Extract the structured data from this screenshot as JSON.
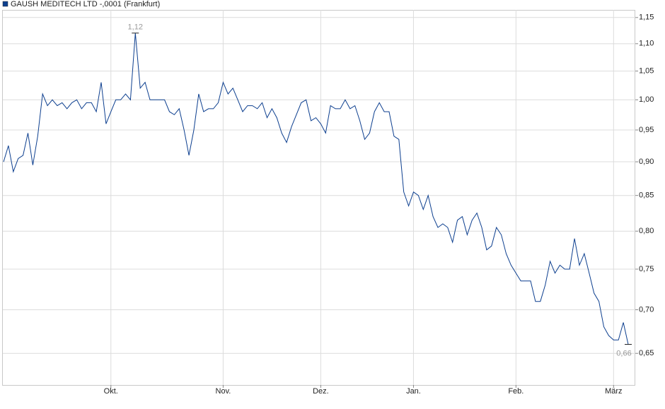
{
  "chart_data": {
    "type": "line",
    "log_scale": true,
    "grid": true,
    "legend_position": "top-left",
    "ylim": [
      0.616,
      1.165
    ],
    "yticks": [
      {
        "value": 0.65,
        "label": "0,65"
      },
      {
        "value": 0.7,
        "label": "0,70"
      },
      {
        "value": 0.75,
        "label": "0,75"
      },
      {
        "value": 0.8,
        "label": "0,80"
      },
      {
        "value": 0.85,
        "label": "0,85"
      },
      {
        "value": 0.9,
        "label": "0,90"
      },
      {
        "value": 0.95,
        "label": "0,95"
      },
      {
        "value": 1.0,
        "label": "1,00"
      },
      {
        "value": 1.05,
        "label": "1,05"
      },
      {
        "value": 1.1,
        "label": "1,10"
      },
      {
        "value": 1.15,
        "label": "1,15"
      }
    ],
    "categories": [
      null,
      null,
      null,
      null,
      null,
      null,
      null,
      null,
      null,
      null,
      null,
      null,
      null,
      null,
      null,
      null,
      null,
      null,
      null,
      null,
      null,
      null,
      "Okt.",
      null,
      null,
      null,
      null,
      null,
      null,
      null,
      null,
      null,
      null,
      null,
      null,
      null,
      null,
      null,
      null,
      null,
      null,
      null,
      null,
      null,
      null,
      "Nov.",
      null,
      null,
      null,
      null,
      null,
      null,
      null,
      null,
      null,
      null,
      null,
      null,
      null,
      null,
      null,
      null,
      null,
      null,
      null,
      "Dez.",
      null,
      null,
      null,
      null,
      null,
      null,
      null,
      null,
      null,
      null,
      null,
      null,
      null,
      null,
      null,
      null,
      null,
      null,
      "Jan.",
      null,
      null,
      null,
      null,
      null,
      null,
      null,
      null,
      null,
      null,
      null,
      null,
      null,
      null,
      null,
      null,
      null,
      null,
      null,
      null,
      "Feb.",
      null,
      null,
      null,
      null,
      null,
      null,
      null,
      null,
      null,
      null,
      null,
      null,
      null,
      null,
      null,
      null,
      null,
      null,
      null,
      "März",
      null,
      null,
      null
    ],
    "series": [
      {
        "name": "GAUSH MEDITECH LTD -,0001 (Frankfurt)",
        "color": "#0d3f8f",
        "values": [
          0.9,
          0.925,
          0.885,
          0.905,
          0.91,
          0.945,
          0.895,
          0.94,
          1.01,
          0.99,
          1.0,
          0.99,
          0.995,
          0.985,
          0.995,
          1.0,
          0.985,
          0.995,
          0.995,
          0.98,
          1.03,
          0.96,
          0.98,
          1.0,
          1.0,
          1.01,
          1.0,
          1.12,
          1.02,
          1.03,
          1.0,
          1.0,
          1.0,
          1.0,
          0.98,
          0.975,
          0.985,
          0.95,
          0.91,
          0.95,
          1.01,
          0.98,
          0.985,
          0.985,
          0.995,
          1.03,
          1.01,
          1.02,
          1.0,
          0.98,
          0.99,
          0.99,
          0.985,
          0.995,
          0.97,
          0.985,
          0.97,
          0.945,
          0.93,
          0.955,
          0.975,
          0.995,
          1.0,
          0.965,
          0.97,
          0.96,
          0.945,
          0.99,
          0.985,
          0.985,
          1.0,
          0.985,
          0.99,
          0.965,
          0.935,
          0.945,
          0.98,
          0.995,
          0.98,
          0.98,
          0.94,
          0.935,
          0.855,
          0.835,
          0.855,
          0.85,
          0.83,
          0.85,
          0.82,
          0.805,
          0.81,
          0.805,
          0.785,
          0.815,
          0.82,
          0.795,
          0.815,
          0.825,
          0.805,
          0.775,
          0.78,
          0.805,
          0.795,
          0.77,
          0.755,
          0.745,
          0.735,
          0.735,
          0.735,
          0.71,
          0.71,
          0.73,
          0.76,
          0.745,
          0.755,
          0.75,
          0.75,
          0.79,
          0.755,
          0.77,
          0.745,
          0.72,
          0.71,
          0.68,
          0.67,
          0.665,
          0.665,
          0.685,
          0.66
        ],
        "value_labels": [
          null,
          null,
          null,
          null,
          null,
          null,
          null,
          null,
          null,
          null,
          null,
          null,
          null,
          null,
          null,
          null,
          null,
          null,
          null,
          null,
          null,
          null,
          null,
          null,
          null,
          null,
          null,
          "1,12",
          null,
          null,
          null,
          null,
          null,
          null,
          null,
          null,
          null,
          null,
          null,
          null,
          null,
          null,
          null,
          null,
          null,
          null,
          null,
          null,
          null,
          null,
          null,
          null,
          null,
          null,
          null,
          null,
          null,
          null,
          null,
          null,
          null,
          null,
          null,
          null,
          null,
          null,
          null,
          null,
          null,
          null,
          null,
          null,
          null,
          null,
          null,
          null,
          null,
          null,
          null,
          null,
          null,
          null,
          null,
          null,
          null,
          null,
          null,
          null,
          null,
          null,
          null,
          null,
          null,
          null,
          null,
          null,
          null,
          null,
          null,
          null,
          null,
          null,
          null,
          null,
          null,
          null,
          null,
          null,
          null,
          null,
          null,
          null,
          null,
          null,
          null,
          null,
          null,
          null,
          null,
          null,
          null,
          null,
          null,
          null,
          null,
          null,
          null,
          null,
          "0,66"
        ]
      }
    ]
  }
}
